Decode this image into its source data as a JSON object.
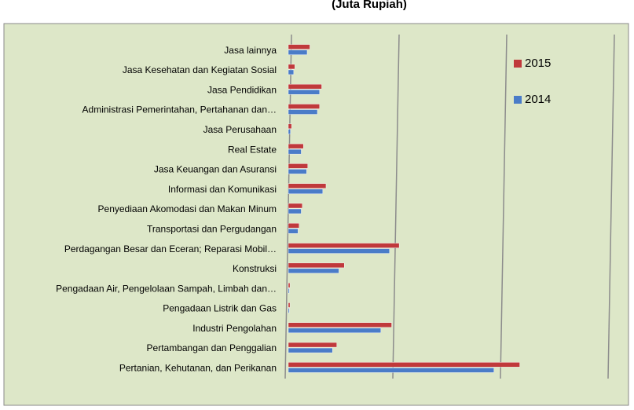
{
  "chart_data": {
    "type": "bar",
    "orientation": "horizontal",
    "title": "(Juta Rupiah)",
    "categories": [
      "Jasa lainnya",
      "Jasa Kesehatan dan Kegiatan Sosial",
      "Jasa Pendidikan",
      "Administrasi Pemerintahan, Pertahanan dan…",
      "Jasa Perusahaan",
      "Real Estate",
      "Jasa Keuangan dan Asuransi",
      "Informasi dan Komunikasi",
      "Penyediaan Akomodasi dan Makan Minum",
      "Transportasi dan Pergudangan",
      "Perdagangan Besar dan Eceran; Reparasi Mobil…",
      "Konstruksi",
      "Pengadaan Air, Pengelolaan Sampah, Limbah dan…",
      "Pengadaan Listrik dan Gas",
      "Industri Pengolahan",
      "Pertambangan dan Penggalian",
      "Pertanian, Kehutanan, dan Perikanan"
    ],
    "series": [
      {
        "name": "2015",
        "color": "#c0393b",
        "values": [
          0.2,
          0.06,
          0.31,
          0.29,
          0.03,
          0.14,
          0.18,
          0.35,
          0.13,
          0.1,
          1.03,
          0.52,
          0.015,
          0.015,
          0.96,
          0.45,
          2.15
        ]
      },
      {
        "name": "2014",
        "color": "#4a7cc8",
        "values": [
          0.175,
          0.05,
          0.29,
          0.27,
          0.02,
          0.12,
          0.17,
          0.32,
          0.12,
          0.09,
          0.94,
          0.47,
          0.01,
          0.01,
          0.86,
          0.41,
          1.91
        ]
      }
    ],
    "xlim": [
      0,
      3
    ],
    "xticks": [
      0,
      1,
      2,
      3
    ],
    "grid": true,
    "legend": "right"
  }
}
